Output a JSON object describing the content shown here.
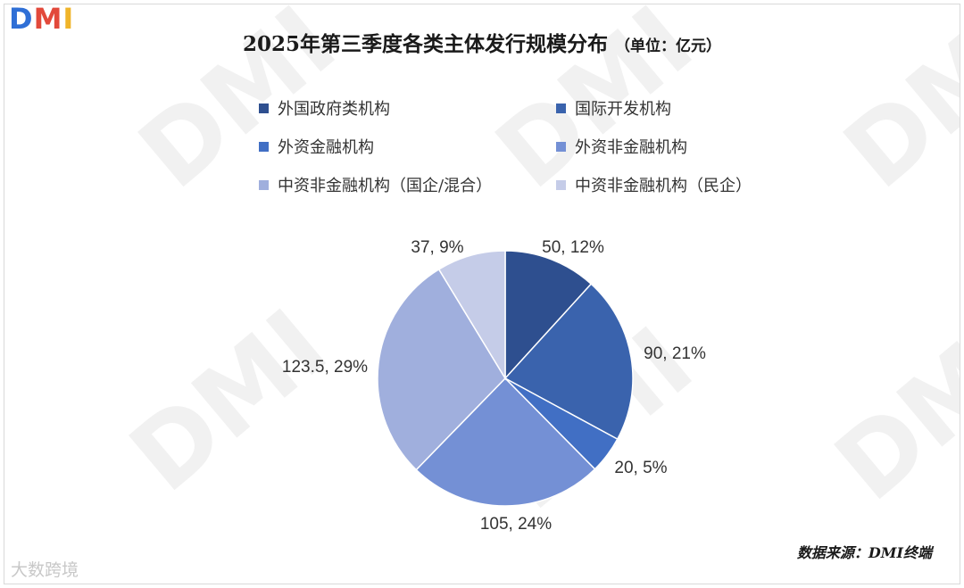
{
  "logo": {
    "d": "D",
    "m": "M",
    "i": "I"
  },
  "watermark_text": "DMI",
  "corner_watermark": "大数跨境",
  "source": "数据来源：DMI终端",
  "chart_data": {
    "type": "pie",
    "title": "2025年第三季度各类主体发行规模分布",
    "unit": "（单位：亿元）",
    "legend_position": "top",
    "series": [
      {
        "name": "外国政府类机构",
        "value": 50,
        "percent": "12%",
        "label": "50, 12%",
        "color": "#2e4f8f"
      },
      {
        "name": "国际开发机构",
        "value": 90,
        "percent": "21%",
        "label": "90, 21%",
        "color": "#3a63ad"
      },
      {
        "name": "外资金融机构",
        "value": 20,
        "percent": "5%",
        "label": "20, 5%",
        "color": "#416fc4"
      },
      {
        "name": "外资非金融机构",
        "value": 105,
        "percent": "24%",
        "label": "105, 24%",
        "color": "#7490d5"
      },
      {
        "name": "中资非金融机构（国企/混合）",
        "value": 123.5,
        "percent": "29%",
        "label": "123.5, 29%",
        "color": "#a0afdd"
      },
      {
        "name": "中资非金融机构（民企）",
        "value": 37,
        "percent": "9%",
        "label": "37, 9%",
        "color": "#c5cce8"
      }
    ]
  }
}
